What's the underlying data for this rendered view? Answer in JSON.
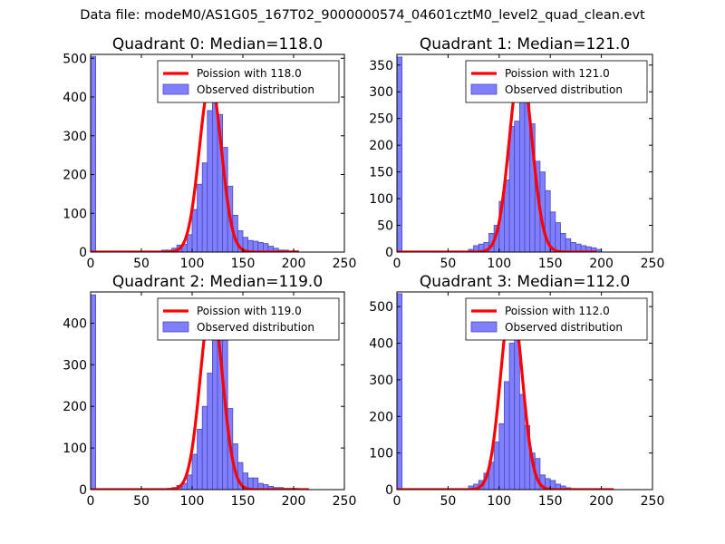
{
  "figure": {
    "suptitle": "Data file: modeM0/AS1G05_167T02_9000000574_04601cztM0_level2_quad_clean.evt",
    "legend_fit_prefix": "Poission with ",
    "legend_observed": "Observed distribution"
  },
  "colors": {
    "hist_fill": "#7f7fff",
    "hist_edge": "#4a4ab8",
    "fit_line": "#ff0000"
  },
  "chart_data": [
    {
      "type": "bar",
      "title": "Quadrant 0: Median=118.0",
      "median": 118.0,
      "legend_fit": "Poission with 118.0",
      "legend_observed": "Observed distribution",
      "xlim": [
        0,
        250
      ],
      "ylim": [
        0,
        510
      ],
      "xticks": [
        0,
        50,
        100,
        150,
        200,
        250
      ],
      "yticks": [
        0,
        100,
        200,
        300,
        400,
        500
      ],
      "bin_width": 5,
      "bins": [
        0,
        70,
        75,
        80,
        85,
        90,
        95,
        100,
        105,
        110,
        115,
        120,
        125,
        130,
        135,
        140,
        145,
        150,
        155,
        160,
        165,
        170,
        175,
        180,
        185,
        190,
        195,
        200
      ],
      "counts": [
        505,
        5,
        5,
        10,
        18,
        20,
        45,
        110,
        175,
        230,
        365,
        395,
        355,
        270,
        170,
        95,
        55,
        38,
        30,
        28,
        25,
        22,
        15,
        10,
        5,
        5,
        3,
        3
      ],
      "fit_peak": 440,
      "fit_x": [
        0,
        205
      ]
    },
    {
      "type": "bar",
      "title": "Quadrant 1: Median=121.0",
      "median": 121.0,
      "legend_fit": "Poission with 121.0",
      "legend_observed": "Observed distribution",
      "xlim": [
        0,
        250
      ],
      "ylim": [
        0,
        370
      ],
      "xticks": [
        0,
        50,
        100,
        150,
        200,
        250
      ],
      "yticks": [
        0,
        50,
        100,
        150,
        200,
        250,
        300,
        350
      ],
      "bin_width": 5,
      "bins": [
        0,
        70,
        75,
        80,
        85,
        90,
        95,
        100,
        105,
        110,
        115,
        120,
        125,
        130,
        135,
        140,
        145,
        150,
        155,
        160,
        165,
        170,
        175,
        180,
        185,
        190,
        195
      ],
      "counts": [
        365,
        5,
        12,
        15,
        18,
        35,
        50,
        95,
        135,
        235,
        245,
        340,
        330,
        240,
        170,
        150,
        115,
        75,
        55,
        35,
        25,
        18,
        15,
        12,
        10,
        8,
        5
      ],
      "fit_peak": 350,
      "fit_x": [
        0,
        195
      ]
    },
    {
      "type": "bar",
      "title": "Quadrant 2: Median=119.0",
      "median": 119.0,
      "legend_fit": "Poission with 119.0",
      "legend_observed": "Observed distribution",
      "xlim": [
        0,
        250
      ],
      "ylim": [
        0,
        475
      ],
      "xticks": [
        0,
        50,
        100,
        150,
        200,
        250
      ],
      "yticks": [
        0,
        100,
        200,
        300,
        400
      ],
      "bin_width": 5,
      "bins": [
        0,
        75,
        80,
        85,
        90,
        95,
        100,
        105,
        110,
        115,
        120,
        125,
        130,
        135,
        140,
        145,
        150,
        155,
        160,
        165,
        170,
        175,
        180,
        185,
        190,
        195,
        200
      ],
      "counts": [
        468,
        3,
        5,
        10,
        15,
        35,
        85,
        145,
        200,
        280,
        450,
        445,
        435,
        195,
        110,
        65,
        40,
        28,
        28,
        15,
        12,
        8,
        5,
        5,
        3,
        3,
        3
      ],
      "fit_peak": 450,
      "fit_x": [
        0,
        215
      ]
    },
    {
      "type": "bar",
      "title": "Quadrant 3: Median=112.0",
      "median": 112.0,
      "legend_fit": "Poission with 112.0",
      "legend_observed": "Observed distribution",
      "xlim": [
        0,
        250
      ],
      "ylim": [
        0,
        540
      ],
      "xticks": [
        0,
        50,
        100,
        150,
        200,
        250
      ],
      "yticks": [
        0,
        100,
        200,
        300,
        400,
        500
      ],
      "bin_width": 5,
      "bins": [
        0,
        70,
        75,
        80,
        85,
        90,
        95,
        100,
        105,
        110,
        115,
        120,
        125,
        130,
        135,
        140,
        145,
        150,
        155,
        160,
        165,
        170
      ],
      "counts": [
        535,
        10,
        15,
        25,
        45,
        75,
        130,
        180,
        295,
        400,
        500,
        260,
        175,
        100,
        85,
        40,
        30,
        25,
        15,
        10,
        5,
        3
      ],
      "fit_peak": 515,
      "fit_x": [
        0,
        212
      ]
    }
  ]
}
